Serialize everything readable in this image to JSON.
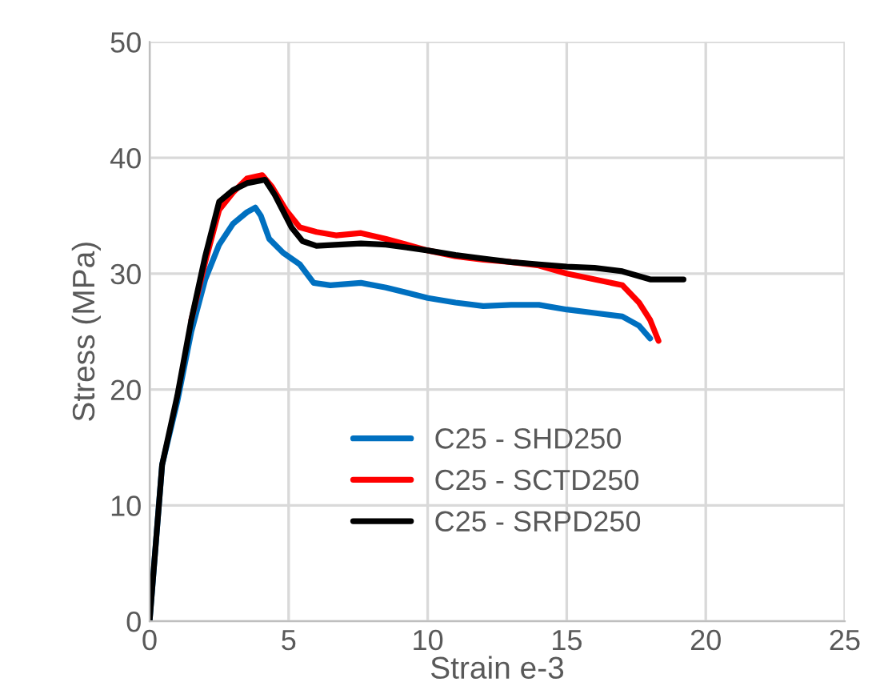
{
  "chart_data": {
    "type": "line",
    "xlabel": "Strain e-3",
    "ylabel": "Stress (MPa)",
    "xlim": [
      0,
      25
    ],
    "xticks": [
      0,
      5,
      10,
      15,
      20,
      25
    ],
    "ylim": [
      0,
      50
    ],
    "yticks": [
      0,
      10,
      20,
      30,
      40,
      50
    ],
    "grid": true,
    "legend": "bottom",
    "line_style": "solid",
    "marker": "none",
    "series": [
      {
        "name": "C25 - SHD250",
        "color": "#0070c0",
        "x": [
          0,
          0.45,
          1.0,
          1.5,
          2.0,
          2.5,
          3.0,
          3.5,
          3.8,
          4.0,
          4.3,
          4.8,
          5.4,
          5.9,
          6.5,
          7.6,
          8.5,
          10.0,
          11.0,
          12.0,
          13.0,
          14.0,
          15.0,
          16.0,
          17.0,
          17.6,
          18.0
        ],
        "values": [
          0,
          13.5,
          19,
          25,
          29.5,
          32.5,
          34.3,
          35.3,
          35.7,
          35,
          33,
          31.8,
          30.8,
          29.2,
          29,
          29.2,
          28.8,
          27.9,
          27.5,
          27.2,
          27.3,
          27.3,
          26.9,
          26.6,
          26.3,
          25.5,
          24.4
        ]
      },
      {
        "name": "C25 - SCTD250",
        "color": "#ff0000",
        "x": [
          1.5,
          2.0,
          2.5,
          3.0,
          3.5,
          4.05,
          4.4,
          4.9,
          5.4,
          6.0,
          6.7,
          7.6,
          8.5,
          10.0,
          11.0,
          12.0,
          13.0,
          14.0,
          15.0,
          16.0,
          17.0,
          17.6,
          18.0,
          18.3
        ],
        "values": [
          26,
          31,
          35.5,
          37,
          38.2,
          38.5,
          37.5,
          35.5,
          34,
          33.6,
          33.3,
          33.5,
          33,
          32,
          31.5,
          31.2,
          31,
          30.7,
          30,
          29.5,
          29,
          27.5,
          26,
          24.2
        ]
      },
      {
        "name": "C25 - SRPD250",
        "color": "#000000",
        "x": [
          0,
          0.45,
          1.0,
          1.5,
          2.0,
          2.5,
          3.0,
          3.5,
          4.15,
          4.5,
          5.1,
          5.5,
          6.0,
          7.6,
          8.5,
          10.0,
          11.0,
          12.0,
          13.0,
          14.0,
          15.0,
          16.0,
          17.0,
          18.0,
          19.2
        ],
        "values": [
          0,
          13.5,
          19.5,
          26,
          31.5,
          36.2,
          37.2,
          37.8,
          38.1,
          36.8,
          34,
          32.8,
          32.4,
          32.6,
          32.5,
          32,
          31.6,
          31.3,
          31,
          30.8,
          30.6,
          30.5,
          30.2,
          29.5,
          29.5
        ]
      }
    ]
  }
}
